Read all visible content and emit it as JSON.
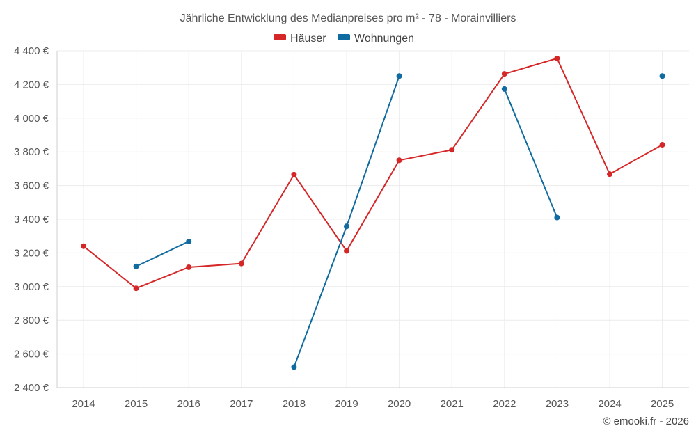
{
  "chart_data": {
    "type": "line",
    "title": "Jährliche Entwicklung des Medianpreises pro m² - 78 - Morainvilliers",
    "categories": [
      "2014",
      "2015",
      "2016",
      "2017",
      "2018",
      "2019",
      "2020",
      "2021",
      "2022",
      "2023",
      "2024",
      "2025"
    ],
    "ylim": [
      2400,
      4400
    ],
    "y_ticks": [
      2400,
      2600,
      2800,
      3000,
      3200,
      3400,
      3600,
      3800,
      4000,
      4200,
      4400
    ],
    "y_tick_labels": [
      "2 400 €",
      "2 600 €",
      "2 800 €",
      "3 000 €",
      "3 200 €",
      "3 400 €",
      "3 600 €",
      "3 800 €",
      "4 000 €",
      "4 200 €",
      "4 400 €"
    ],
    "grid": true,
    "legend_position": "top-center",
    "series": [
      {
        "name": "Häuser",
        "color": "#d62728",
        "values": [
          3240,
          2990,
          3115,
          3137,
          3665,
          3212,
          3750,
          3812,
          4263,
          4355,
          3668,
          3842
        ]
      },
      {
        "name": "Wohnungen",
        "color": "#0f6ba0",
        "values": [
          null,
          3120,
          3268,
          null,
          2522,
          3358,
          4250,
          null,
          4173,
          3410,
          null,
          4250
        ]
      }
    ]
  },
  "credit": "© emooki.fr - 2026"
}
